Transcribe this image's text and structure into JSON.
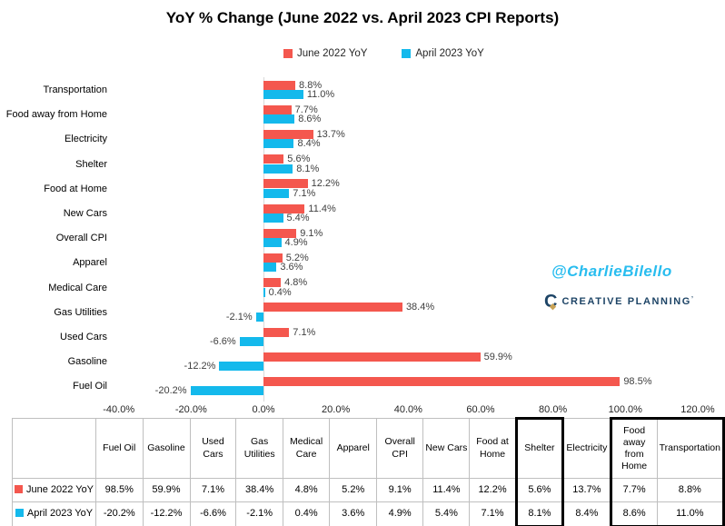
{
  "title": "YoY % Change (June 2022 vs. April 2023 CPI Reports)",
  "legend": [
    {
      "label": "June 2022 YoY",
      "color": "#f4574e"
    },
    {
      "label": "April 2023 YoY",
      "color": "#14b9ec"
    }
  ],
  "chart_data": {
    "type": "bar",
    "orientation": "horizontal",
    "title": "YoY % Change (June 2022 vs. April 2023 CPI Reports)",
    "categories": [
      "Transportation",
      "Food away from Home",
      "Electricity",
      "Shelter",
      "Food at Home",
      "New Cars",
      "Overall CPI",
      "Apparel",
      "Medical Care",
      "Gas Utilities",
      "Used Cars",
      "Gasoline",
      "Fuel Oil"
    ],
    "series": [
      {
        "name": "June 2022 YoY",
        "color": "#f4574e",
        "values": [
          8.8,
          7.7,
          13.7,
          5.6,
          12.2,
          11.4,
          9.1,
          5.2,
          4.8,
          38.4,
          7.1,
          59.9,
          98.5
        ]
      },
      {
        "name": "April 2023 YoY",
        "color": "#14b9ec",
        "values": [
          11.0,
          8.6,
          8.4,
          8.1,
          7.1,
          5.4,
          4.9,
          3.6,
          0.4,
          -2.1,
          -6.6,
          -12.2,
          -20.2
        ]
      }
    ],
    "xlim": [
      -40,
      120
    ],
    "x_ticks": [
      {
        "value": -40,
        "label": "-40.0%"
      },
      {
        "value": -20,
        "label": "-20.0%"
      },
      {
        "value": 0,
        "label": "0.0%"
      },
      {
        "value": 20,
        "label": "20.0%"
      },
      {
        "value": 40,
        "label": "40.0%"
      },
      {
        "value": 60,
        "label": "60.0%"
      },
      {
        "value": 80,
        "label": "80.0%"
      },
      {
        "value": 100,
        "label": "100.0%"
      },
      {
        "value": 120,
        "label": "120.0%"
      }
    ],
    "value_label_suffix": "%",
    "grid": "zero-line-only",
    "legend_position": "top"
  },
  "table": {
    "columns": [
      "Fuel Oil",
      "Gasoline",
      "Used Cars",
      "Gas Utilities",
      "Medical Care",
      "Apparel",
      "Overall CPI",
      "New Cars",
      "Food at Home",
      "Shelter",
      "Electricity",
      "Food away from Home",
      "Transportation"
    ],
    "rows": [
      {
        "label": "June 2022 YoY",
        "marker_color": "#f4574e",
        "values": [
          "98.5%",
          "59.9%",
          "7.1%",
          "38.4%",
          "4.8%",
          "5.2%",
          "9.1%",
          "11.4%",
          "12.2%",
          "5.6%",
          "13.7%",
          "7.7%",
          "8.8%"
        ]
      },
      {
        "label": "April 2023 YoY",
        "marker_color": "#14b9ec",
        "values": [
          "-20.2%",
          "-12.2%",
          "-6.6%",
          "-2.1%",
          "0.4%",
          "3.6%",
          "4.9%",
          "5.4%",
          "7.1%",
          "8.1%",
          "8.4%",
          "8.6%",
          "11.0%"
        ]
      }
    ],
    "highlighted_column": "Shelter",
    "highlighted_column_group": [
      "Food away from Home",
      "Transportation"
    ]
  },
  "watermarks": {
    "handle": "@CharlieBilello",
    "handle_color": "#29bdef",
    "logo_text": "CREATIVE PLANNING",
    "logo_suffix": "’",
    "logo_color": "#1d4466",
    "logo_accent": "#c9a356"
  }
}
